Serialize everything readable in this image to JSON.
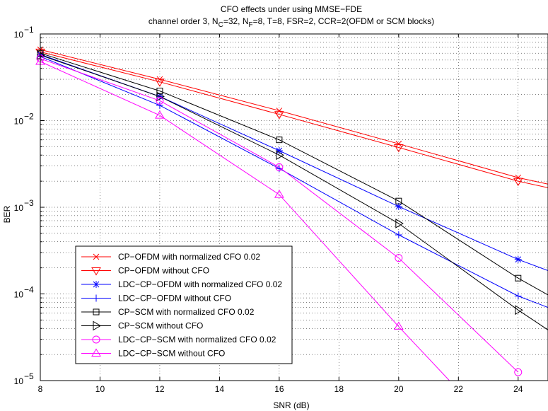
{
  "chart_data": {
    "type": "line",
    "title_line1": "CFO effects under using MMSE−FDE",
    "title_line2": {
      "p1": "channel order 3, N",
      "s1": "C",
      "p2": "=32, N",
      "s2": "F",
      "p3": "=8, T=8, FSR=2, CCR=2(OFDM or SCM blocks)"
    },
    "xlabel": "SNR (dB)",
    "ylabel": "BER",
    "xlim": [
      8,
      25
    ],
    "ylim_exp": [
      -5,
      -1
    ],
    "log_y": true,
    "grid": true,
    "x_ticks": [
      "8",
      "10",
      "12",
      "14",
      "16",
      "18",
      "20",
      "22",
      "24"
    ],
    "y_tick_labels": [
      {
        "base": "10",
        "exp": "−1"
      },
      {
        "base": "10",
        "exp": "−2"
      },
      {
        "base": "10",
        "exp": "−3"
      },
      {
        "base": "10",
        "exp": "−4"
      },
      {
        "base": "10",
        "exp": "−5"
      }
    ],
    "legend_position": "lower-left",
    "series": [
      {
        "name": "CP−OFDM with normalized CFO 0.02",
        "color": "#ff0000",
        "marker": "x",
        "x": [
          8,
          12,
          16,
          20,
          24,
          25
        ],
        "y": [
          0.066,
          0.03,
          0.013,
          0.0054,
          0.0022,
          0.00185
        ],
        "marker_x": [
          8,
          12,
          16,
          20,
          24
        ]
      },
      {
        "name": "CP−OFDM without CFO",
        "color": "#ff0000",
        "marker": "triangle-down",
        "x": [
          8,
          12,
          16,
          20,
          24,
          25
        ],
        "y": [
          0.062,
          0.028,
          0.0118,
          0.0049,
          0.002,
          0.00168
        ],
        "marker_x": [
          8,
          12,
          16,
          20,
          24
        ]
      },
      {
        "name": "LDC−CP−OFDM with normalized CFO 0.02",
        "color": "#0000ff",
        "marker": "star",
        "x": [
          8,
          12,
          16,
          20,
          24,
          25
        ],
        "y": [
          0.058,
          0.019,
          0.0045,
          0.00102,
          0.00025,
          0.000186
        ],
        "marker_x": [
          8,
          12,
          16,
          20,
          24
        ]
      },
      {
        "name": "LDC−CP−OFDM without CFO",
        "color": "#0000ff",
        "marker": "plus",
        "x": [
          8,
          12,
          16,
          20,
          24,
          25
        ],
        "y": [
          0.055,
          0.015,
          0.0028,
          0.00048,
          9.45e-05,
          6.98e-05
        ],
        "marker_x": [
          8,
          12,
          16,
          20,
          24
        ]
      },
      {
        "name": "CP−SCM with normalized CFO 0.02",
        "color": "#000000",
        "marker": "square",
        "x": [
          8,
          12,
          16,
          20,
          24,
          25
        ],
        "y": [
          0.06,
          0.022,
          0.006,
          0.00118,
          0.000152,
          9.74e-05
        ],
        "marker_x": [
          8,
          12,
          16,
          20,
          24
        ]
      },
      {
        "name": "CP−SCM without CFO",
        "color": "#000000",
        "marker": "triangle-right",
        "x": [
          8,
          12,
          16,
          20,
          24,
          25
        ],
        "y": [
          0.057,
          0.019,
          0.004,
          0.00065,
          6.52e-05,
          3.84e-05
        ],
        "marker_x": [
          8,
          12,
          16,
          20,
          24
        ]
      },
      {
        "name": "LDC−CP−SCM with normalized CFO 0.02",
        "color": "#ff00ff",
        "marker": "circle",
        "x": [
          8,
          12,
          16,
          20,
          24
        ],
        "y": [
          0.052,
          0.017,
          0.0029,
          0.00026,
          1.25e-05
        ],
        "marker_x": [
          8,
          12,
          16,
          20,
          24
        ]
      },
      {
        "name": "LDC−CP−SCM without CFO",
        "color": "#ff00ff",
        "marker": "triangle-up",
        "x": [
          8,
          12,
          16,
          20,
          21.7
        ],
        "y": [
          0.048,
          0.0115,
          0.0014,
          4.2e-05,
          1e-05
        ],
        "marker_x": [
          8,
          12,
          16,
          20
        ]
      }
    ]
  }
}
